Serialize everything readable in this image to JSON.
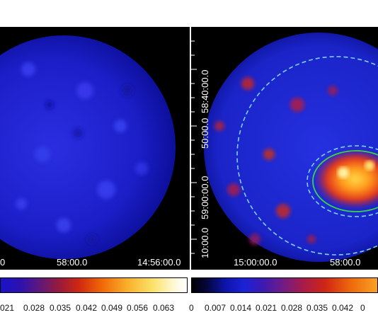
{
  "left_panel": {
    "x_ticks": [
      "0",
      "58:00.0",
      "14:56:00.0"
    ],
    "colorbar_labels": [
      "021",
      "0.028",
      "0.035",
      "0.042",
      "0.049",
      "0.056",
      "0.063"
    ]
  },
  "right_panel": {
    "x_ticks": [
      "15:00:00.0",
      "58:00.0"
    ],
    "y_ticks": [
      "58:40:00.0",
      "50:00.0",
      "59:00:00.0",
      "10:00.0"
    ],
    "colorbar_labels": [
      "0",
      "0.007",
      "0.014",
      "0.021",
      "0.028",
      "0.035",
      "0.042",
      "0"
    ]
  },
  "colors": {
    "background": "#000000",
    "region_green": "#39d34a",
    "region_dashed": "#7dd0ff"
  }
}
